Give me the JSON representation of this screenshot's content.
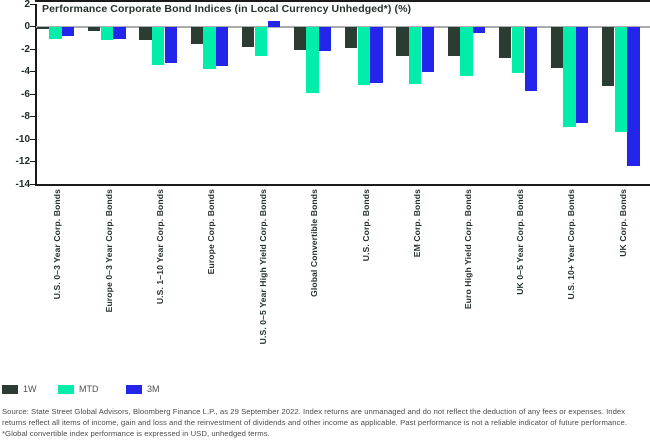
{
  "title": "Performance Corporate Bond Indices (in Local Currency Unhedged*) (%)",
  "chart_data": {
    "type": "bar",
    "title": "Performance Corporate Bond Indices (in Local Currency Unhedged*) (%)",
    "categories": [
      "U.S. 0–3 Year Corp. Bonds",
      "Europe 0–3 Year Corp. Bonds",
      "U.S. 1–10 Year Corp. Bonds",
      "Europe Corp. Bonds",
      "U.S. 0–5 Year High Yield Corp. Bonds",
      "Global Convertible Bonds",
      "U.S. Corp. Bonds",
      "EM Corp. Bonds",
      "Euro High Yield Corp. Bonds",
      "UK 0–5 Year Corp. Bonds",
      "U.S. 10+ Year Corp. Bonds",
      "UK Corp. Bonds"
    ],
    "series": [
      {
        "name": "1W",
        "color": "#2b3c33",
        "values": [
          -0.2,
          -0.4,
          -1.2,
          -1.5,
          -1.8,
          -2.1,
          -1.9,
          -2.6,
          -2.6,
          -2.8,
          -3.7,
          -5.3
        ]
      },
      {
        "name": "MTD",
        "color": "#00edaa",
        "values": [
          -1.1,
          -1.2,
          -3.4,
          -3.8,
          -2.6,
          -5.9,
          -5.2,
          -5.1,
          -4.4,
          -4.1,
          -8.9,
          -9.4
        ]
      },
      {
        "name": "3M",
        "color": "#2326ea",
        "values": [
          -0.8,
          -1.1,
          -3.2,
          -3.5,
          0.5,
          -2.2,
          -5.0,
          -4.0,
          -0.6,
          -5.7,
          -8.6,
          -12.4
        ]
      }
    ],
    "ylim": [
      -14,
      2
    ],
    "yticks": [
      2,
      0,
      -2,
      -4,
      -6,
      -8,
      -10,
      -12,
      -14
    ],
    "xlabel": "",
    "ylabel": "",
    "grid": false,
    "legend_position": "bottom-left"
  },
  "colors": {
    "axis": "#1b1b1b",
    "zero_line": "#aaacae",
    "series_1w": "#2b3c33",
    "series_mtd": "#00edaa",
    "series_3m": "#2326ea"
  },
  "source_note": "Source: State Street Global Advisors, Bloomberg Finance L.P., as 29 September 2022. Index returns are unmanaged and do not reflect the deduction of any fees or expenses. Index returns reflect all items of income, gain and loss and the reinvestment of dividends and other income as applicable. Past performance is not a reliable indicator of future performance. *Global convertible index performance is expressed in USD, unhedged terms."
}
